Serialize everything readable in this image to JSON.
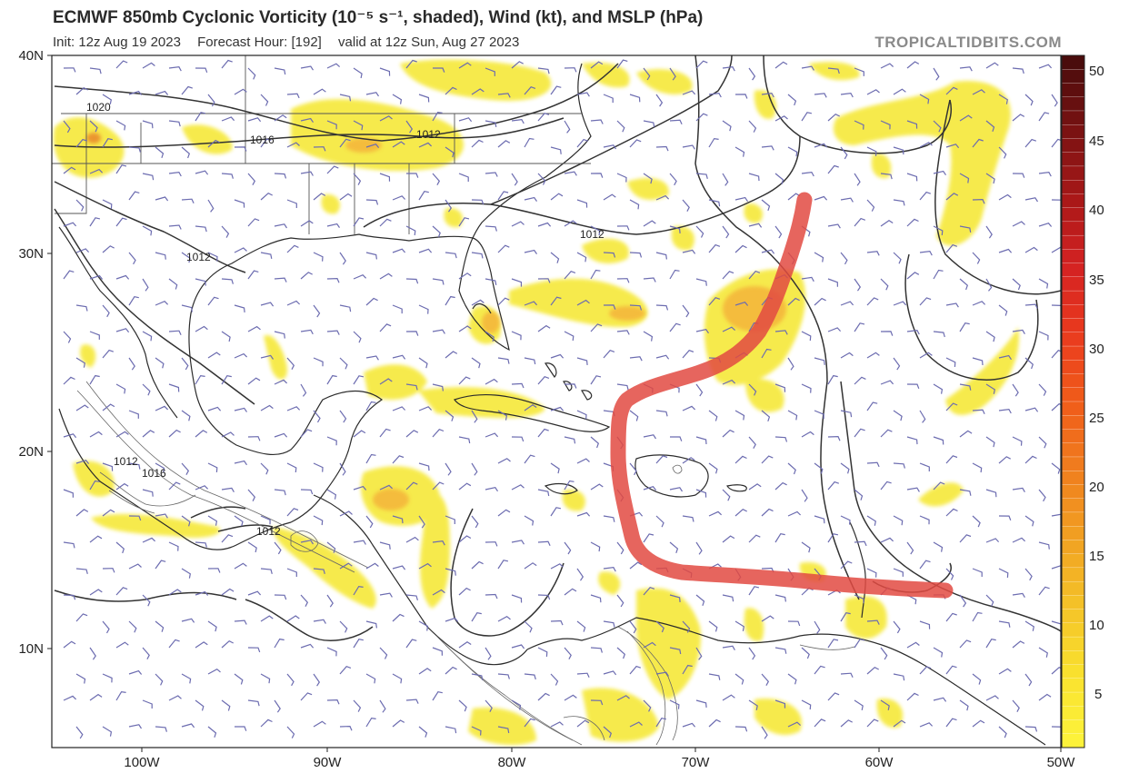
{
  "header": {
    "title": "ECMWF 850mb Cyclonic Vorticity (10⁻⁵ s⁻¹, shaded), Wind (kt), and MSLP (hPa)",
    "init": "Init: 12z Aug 19 2023",
    "forecast_hour": "Forecast Hour: [192]",
    "valid": "valid at 12z Sun, Aug 27 2023",
    "watermark": "TROPICALTIDBITS.COM"
  },
  "map": {
    "lat_ticks": [
      "40N",
      "30N",
      "20N",
      "10N"
    ],
    "lon_ticks": [
      "100W",
      "90W",
      "80W",
      "70W",
      "60W",
      "50W"
    ],
    "isobar_labels": [
      "1020",
      "1016",
      "1012",
      "1012",
      "1012",
      "1012",
      "1016",
      "1012"
    ]
  },
  "colorbar": {
    "ticks": [
      "50",
      "45",
      "40",
      "35",
      "30",
      "25",
      "20",
      "15",
      "10",
      "5"
    ],
    "colors": [
      "#4a0c0c",
      "#7a1212",
      "#a81818",
      "#d42222",
      "#ea3a1e",
      "#f05c1a",
      "#f07e1e",
      "#f1a022",
      "#f4c228",
      "#f9e12e",
      "#fdf23a"
    ]
  },
  "annotation": {
    "track_color": "#e24a42",
    "description_color_hint": "hand-drawn red track line"
  }
}
